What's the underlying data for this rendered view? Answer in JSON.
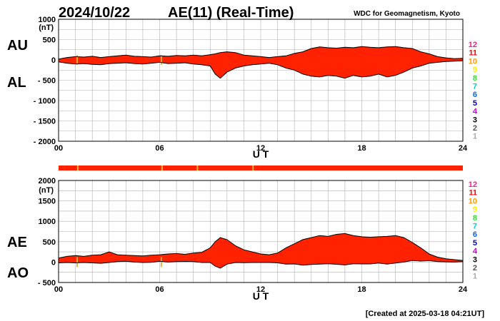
{
  "header": {
    "date": "2024/10/22",
    "title": "AE(11) (Real-Time)",
    "source": "WDC for Geomagnetism, Kyoto"
  },
  "footer": {
    "created": "[Created at 2025-03-18 04:21UT]"
  },
  "colors": {
    "fill": "#ff2200",
    "gap_mark": "#f0b030",
    "bar_band": "#ff2200",
    "grid": "#b0b0b0",
    "outline": "#000000"
  },
  "station_legend": [
    {
      "label": "12",
      "color": "#ff1a8c"
    },
    {
      "label": "11",
      "color": "#ff0000"
    },
    {
      "label": "10",
      "color": "#ff9900"
    },
    {
      "label": "9",
      "color": "#ffee00"
    },
    {
      "label": "8",
      "color": "#33dd33"
    },
    {
      "label": "7",
      "color": "#00cccc"
    },
    {
      "label": "6",
      "color": "#0066ff"
    },
    {
      "label": "5",
      "color": "#0000cc"
    },
    {
      "label": "4",
      "color": "#cc00cc"
    },
    {
      "label": "3",
      "color": "#000000"
    },
    {
      "label": "2",
      "color": "#555555"
    },
    {
      "label": "1",
      "color": "#aaaaaa"
    }
  ],
  "chart_data": [
    {
      "type": "area",
      "id": "au-al",
      "label_top": "AU",
      "label_bottom": "AL",
      "unit": "(nT)",
      "xlabel": "U T",
      "x_ticks": [
        "00",
        "06",
        "12",
        "18",
        "24"
      ],
      "y_ticks": [
        "1000",
        "500",
        "0",
        "- 500",
        "- 1000",
        "- 1500",
        "- 2000"
      ],
      "xlim": [
        0,
        24
      ],
      "ylim": [
        -2000,
        1000
      ],
      "grid": true,
      "x": [
        0,
        0.5,
        1,
        1.5,
        2,
        2.5,
        3,
        3.5,
        4,
        4.5,
        5,
        5.5,
        6,
        6.5,
        7,
        7.5,
        8,
        8.5,
        9,
        9.3,
        9.6,
        10,
        10.5,
        11,
        11.5,
        12,
        12.5,
        13,
        13.5,
        14,
        14.5,
        15,
        15.5,
        16,
        16.5,
        17,
        17.5,
        18,
        18.5,
        19,
        19.5,
        20,
        20.5,
        21,
        21.5,
        22,
        22.5,
        23,
        23.5,
        24
      ],
      "series": [
        {
          "name": "AU",
          "values": [
            20,
            60,
            80,
            70,
            90,
            60,
            80,
            100,
            120,
            90,
            80,
            70,
            100,
            90,
            110,
            100,
            120,
            100,
            130,
            150,
            180,
            200,
            180,
            120,
            100,
            80,
            60,
            80,
            100,
            160,
            200,
            280,
            320,
            300,
            290,
            310,
            300,
            330,
            310,
            300,
            320,
            330,
            300,
            280,
            200,
            150,
            80,
            50,
            30,
            40
          ]
        },
        {
          "name": "AL",
          "values": [
            -50,
            -80,
            -100,
            -90,
            -110,
            -120,
            -90,
            -80,
            -70,
            -90,
            -100,
            -80,
            -60,
            -90,
            -80,
            -70,
            -100,
            -120,
            -150,
            -350,
            -450,
            -300,
            -200,
            -150,
            -120,
            -100,
            -80,
            -120,
            -200,
            -250,
            -350,
            -400,
            -420,
            -380,
            -400,
            -450,
            -380,
            -420,
            -400,
            -350,
            -420,
            -380,
            -300,
            -200,
            -150,
            -80,
            -60,
            -40,
            -30,
            -20
          ]
        }
      ]
    },
    {
      "type": "area",
      "id": "ae-ao",
      "label_top": "AE",
      "label_bottom": "AO",
      "unit": "(nT)",
      "xlabel": "U T",
      "x_ticks": [
        "00",
        "06",
        "12",
        "18",
        "24"
      ],
      "y_ticks": [
        "2000",
        "1500",
        "1000",
        "500",
        "0",
        "- 500"
      ],
      "xlim": [
        0,
        24
      ],
      "ylim": [
        -500,
        2000
      ],
      "grid": true,
      "x": [
        0,
        0.5,
        1,
        1.5,
        2,
        2.5,
        3,
        3.5,
        4,
        4.5,
        5,
        5.5,
        6,
        6.5,
        7,
        7.5,
        8,
        8.5,
        9,
        9.3,
        9.6,
        10,
        10.5,
        11,
        11.5,
        12,
        12.5,
        13,
        13.5,
        14,
        14.5,
        15,
        15.5,
        16,
        16.5,
        17,
        17.5,
        18,
        18.5,
        19,
        19.5,
        20,
        20.5,
        21,
        21.5,
        22,
        22.5,
        23,
        23.5,
        24
      ],
      "series": [
        {
          "name": "AE",
          "values": [
            100,
            140,
            160,
            140,
            170,
            180,
            250,
            180,
            170,
            160,
            150,
            170,
            180,
            200,
            210,
            190,
            220,
            240,
            350,
            500,
            600,
            550,
            400,
            300,
            250,
            200,
            180,
            220,
            350,
            450,
            550,
            600,
            650,
            630,
            680,
            700,
            650,
            620,
            610,
            620,
            630,
            650,
            600,
            480,
            350,
            200,
            120,
            80,
            60,
            40
          ]
        },
        {
          "name": "AO",
          "values": [
            -20,
            -10,
            -20,
            -10,
            -20,
            -30,
            -10,
            10,
            20,
            0,
            -10,
            -5,
            20,
            0,
            10,
            15,
            10,
            -10,
            -10,
            -100,
            -150,
            -50,
            -10,
            -15,
            -10,
            -10,
            -10,
            -20,
            -50,
            -45,
            -75,
            -60,
            -50,
            -40,
            -55,
            -70,
            -40,
            -45,
            -45,
            -25,
            -50,
            -25,
            0,
            40,
            25,
            35,
            10,
            5,
            0,
            10
          ]
        }
      ]
    }
  ]
}
